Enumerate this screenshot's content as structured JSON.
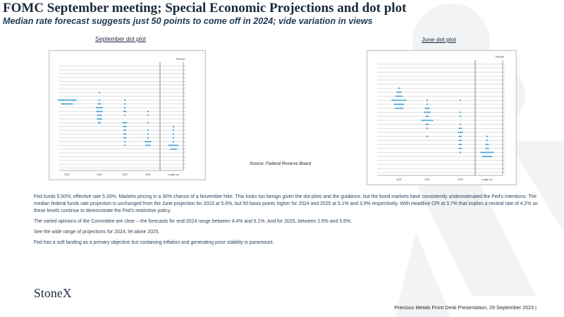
{
  "header": {
    "title": "FOMC September meeting; Special Economic Projections and dot plot",
    "subtitle": "Median rate forecast suggests just 50 points to come off in 2024; vide variation in views"
  },
  "september_plot": {
    "label": "September dot plot",
    "percent_label": "Percent",
    "x_labels": [
      "2023",
      "2024",
      "2025",
      "2026",
      "Longer run"
    ]
  },
  "june_plot": {
    "label": "June dot plot",
    "percent_label": "Percent",
    "x_labels": [
      "2023",
      "2024",
      "2025",
      "Longer run"
    ]
  },
  "source": "Source: Federal Reserve Board",
  "body": {
    "p1": "Fed funds 5.50%; effective rate 5.33%. Markets pricing in a 30% chance of a November hike. This looks too benign given the dot plots and the guidance, but the bond markets have consistently underestimated the Fed’s intentions. The median federal funds rate projection is unchanged from the June projection for 2023 at 5.6%, but 50 basis points higher for 2024 and 2025 at 5.1% and 3.9% respectively. With Headline CPI at 3.7% that implies a neutral rate of 4.2% so these levels continue to demonstrate the Fed’s restrictive policy.",
    "p2": "The varied opinions of the Committee are clear – the forecasts for end-2024 range between 4.4% and 6.1%. And for 2025, between 2.6% and 5.6%.",
    "p3": "See the wide range of projections for 2024, let alone 2025.",
    "p4": "Fed has a soft landing as a primary objective but containing inflation and generating price stability is paramount."
  },
  "brand": {
    "logo_text": "StoneX"
  },
  "footer": "Precious Metals Front Desk Presentation, 29 September 2023 |",
  "colors": {
    "dot": "#3a9bd5",
    "title": "#1b2a3a",
    "watermark": "#eef1f3"
  }
}
